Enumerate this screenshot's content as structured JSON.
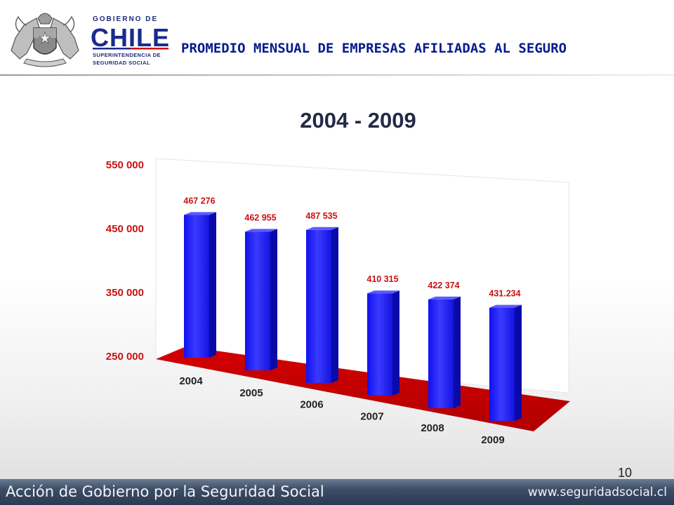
{
  "header": {
    "logo_lines": [
      "GOBIERNO DE",
      "CHILE",
      "SUPERINTENDENCIA DE",
      "SEGURIDAD SOCIAL"
    ],
    "title": "PROMEDIO MENSUAL DE EMPRESAS AFILIADAS AL SEGURO",
    "title_color": "#0a1a8c"
  },
  "chart_data": {
    "type": "bar",
    "title": "2004 - 2009",
    "categories": [
      "2004",
      "2005",
      "2006",
      "2007",
      "2008",
      "2009"
    ],
    "values": [
      467276,
      462955,
      487535,
      410315,
      422374,
      431234
    ],
    "value_labels": [
      "467 276",
      "462 955",
      "487 535",
      "410 315",
      "422 374",
      "431.234"
    ],
    "y_ticks": [
      "550 000",
      "450 000",
      "350 000",
      "250 000"
    ],
    "ylim": [
      250000,
      550000
    ],
    "xlabel": "",
    "ylabel": "",
    "grid": false,
    "legend": "none",
    "colors": {
      "bar": "#1a1aff",
      "floor": "#cc0000",
      "labels": "#cc1111",
      "axis_text": "#cc1111"
    }
  },
  "page_number": "10",
  "footer": {
    "left": "Acción de Gobierno por la Seguridad Social",
    "right": "www.seguridadsocial.cl"
  }
}
